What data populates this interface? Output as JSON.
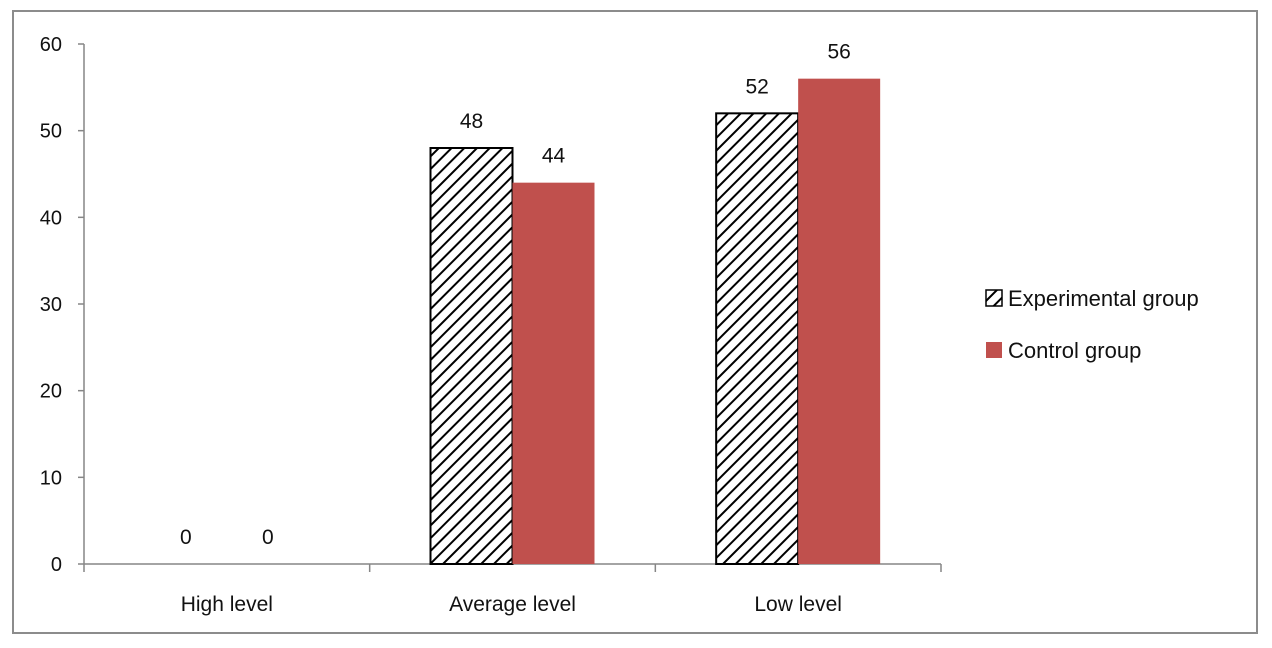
{
  "chart_data": {
    "type": "bar",
    "categories": [
      "High level",
      "Average level",
      "Low level"
    ],
    "series": [
      {
        "name": "Experimental group",
        "values": [
          0,
          48,
          52
        ],
        "color": "#ffffff",
        "pattern": "diagonal-hatch",
        "stroke": "#000000"
      },
      {
        "name": "Control group",
        "values": [
          0,
          44,
          56
        ],
        "color": "#c0504d"
      }
    ],
    "ylim": [
      0,
      60
    ],
    "yticks": [
      0,
      10,
      20,
      30,
      40,
      50,
      60
    ],
    "data_labels": true,
    "grid": false,
    "legend_position": "right"
  }
}
